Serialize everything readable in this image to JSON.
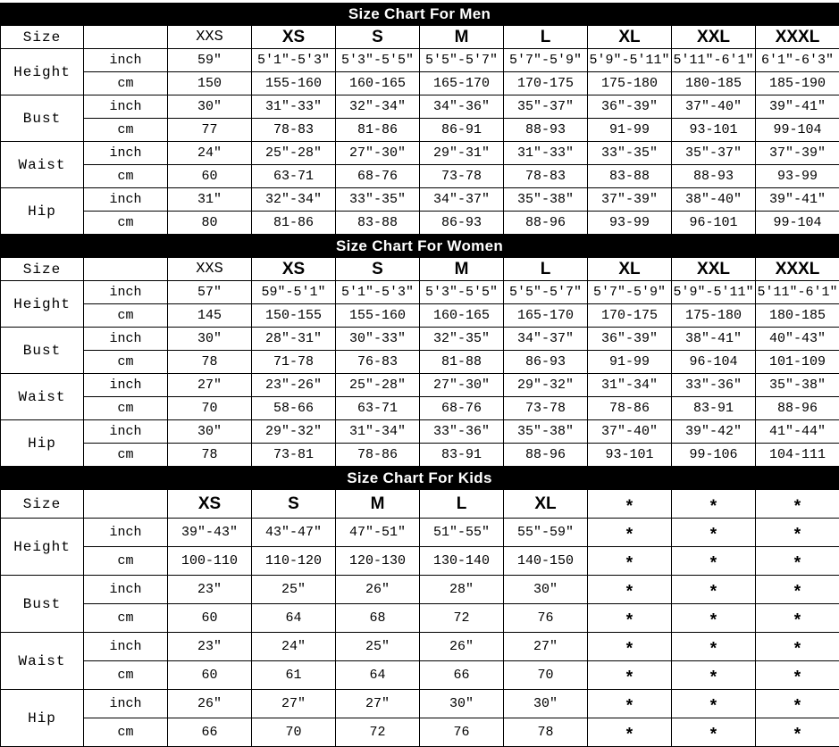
{
  "page": {
    "background": "#ffffff",
    "bar_color": "#000000",
    "bar_text_color": "#ffffff",
    "grid_color": "#000000"
  },
  "tables": [
    {
      "title": "Size Chart For Men",
      "size_label": "Size",
      "units": [
        "inch",
        "cm"
      ],
      "sizes": [
        "XXS",
        "XS",
        "S",
        "M",
        "L",
        "XL",
        "XXL",
        "XXXL"
      ],
      "measurements": [
        {
          "label": "Height",
          "inch": [
            "59″",
            "5′1\"-5′3\"",
            "5′3\"-5′5\"",
            "5′5\"-5′7\"",
            "5′7\"-5′9\"",
            "5′9\"-5′11\"",
            "5′11\"-6′1\"",
            "6′1\"-6′3\""
          ],
          "cm": [
            "150",
            "155-160",
            "160-165",
            "165-170",
            "170-175",
            "175-180",
            "180-185",
            "185-190"
          ]
        },
        {
          "label": "Bust",
          "inch": [
            "30″",
            "31\"-33\"",
            "32\"-34\"",
            "34\"-36\"",
            "35\"-37\"",
            "36\"-39\"",
            "37\"-40\"",
            "39\"-41\""
          ],
          "cm": [
            "77",
            "78-83",
            "81-86",
            "86-91",
            "88-93",
            "91-99",
            "93-101",
            "99-104"
          ]
        },
        {
          "label": "Waist",
          "inch": [
            "24″",
            "25\"-28\"",
            "27\"-30\"",
            "29\"-31\"",
            "31\"-33\"",
            "33\"-35\"",
            "35\"-37\"",
            "37\"-39\""
          ],
          "cm": [
            "60",
            "63-71",
            "68-76",
            "73-78",
            "78-83",
            "83-88",
            "88-93",
            "93-99"
          ]
        },
        {
          "label": "Hip",
          "inch": [
            "31″",
            "32\"-34\"",
            "33\"-35\"",
            "34\"-37\"",
            "35\"-38\"",
            "37\"-39\"",
            "38\"-40\"",
            "39\"-41\""
          ],
          "cm": [
            "80",
            "81-86",
            "83-88",
            "86-93",
            "88-96",
            "93-99",
            "96-101",
            "99-104"
          ]
        }
      ]
    },
    {
      "title": "Size Chart For Women",
      "size_label": "Size",
      "units": [
        "inch",
        "cm"
      ],
      "sizes": [
        "XXS",
        "XS",
        "S",
        "M",
        "L",
        "XL",
        "XXL",
        "XXXL"
      ],
      "measurements": [
        {
          "label": "Height",
          "inch": [
            "57″",
            "59\"-5′1\"",
            "5′1\"-5′3\"",
            "5′3\"-5′5\"",
            "5′5\"-5′7\"",
            "5′7\"-5′9\"",
            "5′9\"-5′11\"",
            "5′11\"-6′1\""
          ],
          "cm": [
            "145",
            "150-155",
            "155-160",
            "160-165",
            "165-170",
            "170-175",
            "175-180",
            "180-185"
          ]
        },
        {
          "label": "Bust",
          "inch": [
            "30″",
            "28\"-31\"",
            "30\"-33\"",
            "32\"-35\"",
            "34\"-37\"",
            "36\"-39\"",
            "38\"-41\"",
            "40\"-43\""
          ],
          "cm": [
            "78",
            "71-78",
            "76-83",
            "81-88",
            "86-93",
            "91-99",
            "96-104",
            "101-109"
          ]
        },
        {
          "label": "Waist",
          "inch": [
            "27″",
            "23\"-26\"",
            "25\"-28\"",
            "27\"-30\"",
            "29\"-32\"",
            "31\"-34\"",
            "33\"-36\"",
            "35\"-38\""
          ],
          "cm": [
            "70",
            "58-66",
            "63-71",
            "68-76",
            "73-78",
            "78-86",
            "83-91",
            "88-96"
          ]
        },
        {
          "label": "Hip",
          "inch": [
            "30″",
            "29\"-32\"",
            "31\"-34\"",
            "33\"-36\"",
            "35\"-38\"",
            "37\"-40\"",
            "39\"-42\"",
            "41\"-44\""
          ],
          "cm": [
            "78",
            "73-81",
            "78-86",
            "83-91",
            "88-96",
            "93-101",
            "99-106",
            "104-111"
          ]
        }
      ]
    },
    {
      "title": "Size Chart For Kids",
      "size_label": "Size",
      "units": [
        "inch",
        "cm"
      ],
      "sizes": [
        "XS",
        "S",
        "M",
        "L",
        "XL",
        "*",
        "*",
        "*"
      ],
      "measurements": [
        {
          "label": "Height",
          "inch": [
            "39″-43″",
            "43\"-47\"",
            "47\"-51\"",
            "51\"-55\"",
            "55\"-59\"",
            "*",
            "*",
            "*"
          ],
          "cm": [
            "100-110",
            "110-120",
            "120-130",
            "130-140",
            "140-150",
            "*",
            "*",
            "*"
          ]
        },
        {
          "label": "Bust",
          "inch": [
            "23\"",
            "25\"",
            "26\"",
            "28\"",
            "30\"",
            "*",
            "*",
            "*"
          ],
          "cm": [
            "60",
            "64",
            "68",
            "72",
            "76",
            "*",
            "*",
            "*"
          ]
        },
        {
          "label": "Waist",
          "inch": [
            "23\"",
            "24\"",
            "25\"",
            "26\"",
            "27\"",
            "*",
            "*",
            "*"
          ],
          "cm": [
            "60",
            "61",
            "64",
            "66",
            "70",
            "*",
            "*",
            "*"
          ]
        },
        {
          "label": "Hip",
          "inch": [
            "26\"",
            "27\"",
            "27\"",
            "30\"",
            "30\"",
            "*",
            "*",
            "*"
          ],
          "cm": [
            "66",
            "70",
            "72",
            "76",
            "78",
            "*",
            "*",
            "*"
          ]
        }
      ]
    }
  ]
}
